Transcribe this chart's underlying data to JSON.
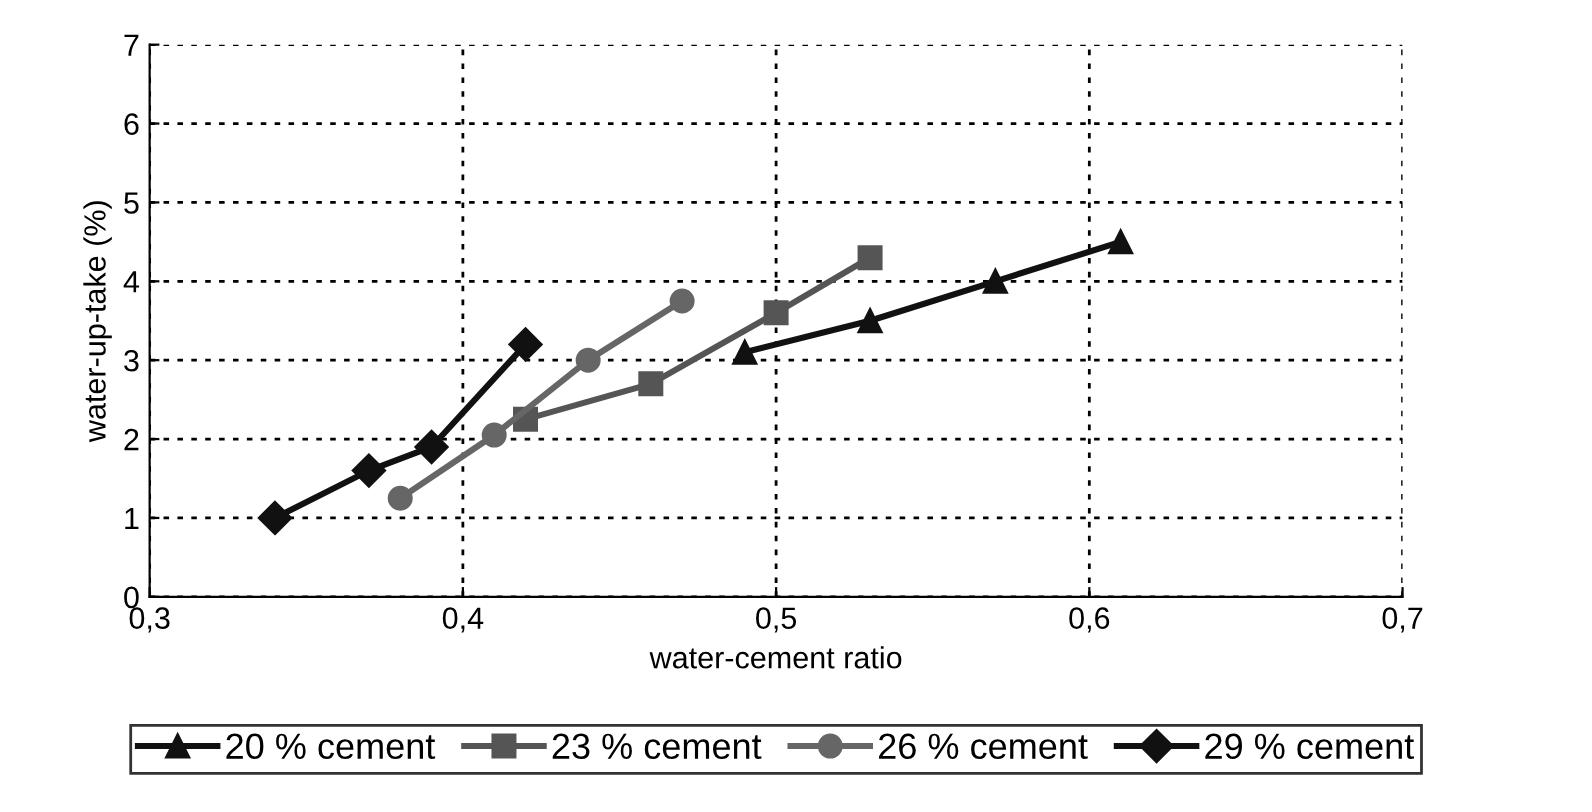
{
  "chart_data": {
    "type": "line",
    "xlabel": "water-cement ratio",
    "ylabel": "water-up-take (%)",
    "xlim": [
      0.3,
      0.7
    ],
    "xticks": [
      {
        "value": 0.3,
        "label": "0,3"
      },
      {
        "value": 0.4,
        "label": "0,4"
      },
      {
        "value": 0.5,
        "label": "0,5"
      },
      {
        "value": 0.6,
        "label": "0,6"
      },
      {
        "value": 0.7,
        "label": "0,7"
      }
    ],
    "ylim": [
      0,
      7
    ],
    "yticks": [
      0,
      1,
      2,
      3,
      4,
      5,
      6,
      7
    ],
    "grid": true,
    "legend": "bottom",
    "line_style": "solid",
    "series": [
      {
        "name": "20 % cement",
        "color": "#111111",
        "marker": "triangle",
        "x": [
          0.49,
          0.53,
          0.57,
          0.61
        ],
        "values": [
          3.1,
          3.5,
          4.0,
          4.5
        ]
      },
      {
        "name": "23 % cement",
        "color": "#555555",
        "marker": "square",
        "x": [
          0.42,
          0.46,
          0.5,
          0.53
        ],
        "values": [
          2.25,
          2.7,
          3.6,
          4.3
        ]
      },
      {
        "name": "26 % cement",
        "color": "#666666",
        "marker": "circle",
        "x": [
          0.38,
          0.41,
          0.44,
          0.47
        ],
        "values": [
          1.25,
          2.05,
          3.0,
          3.75
        ]
      },
      {
        "name": "29 % cement",
        "color": "#111111",
        "marker": "diamond",
        "x": [
          0.34,
          0.37,
          0.39,
          0.42
        ],
        "values": [
          1.0,
          1.6,
          1.9,
          3.2
        ]
      }
    ]
  }
}
